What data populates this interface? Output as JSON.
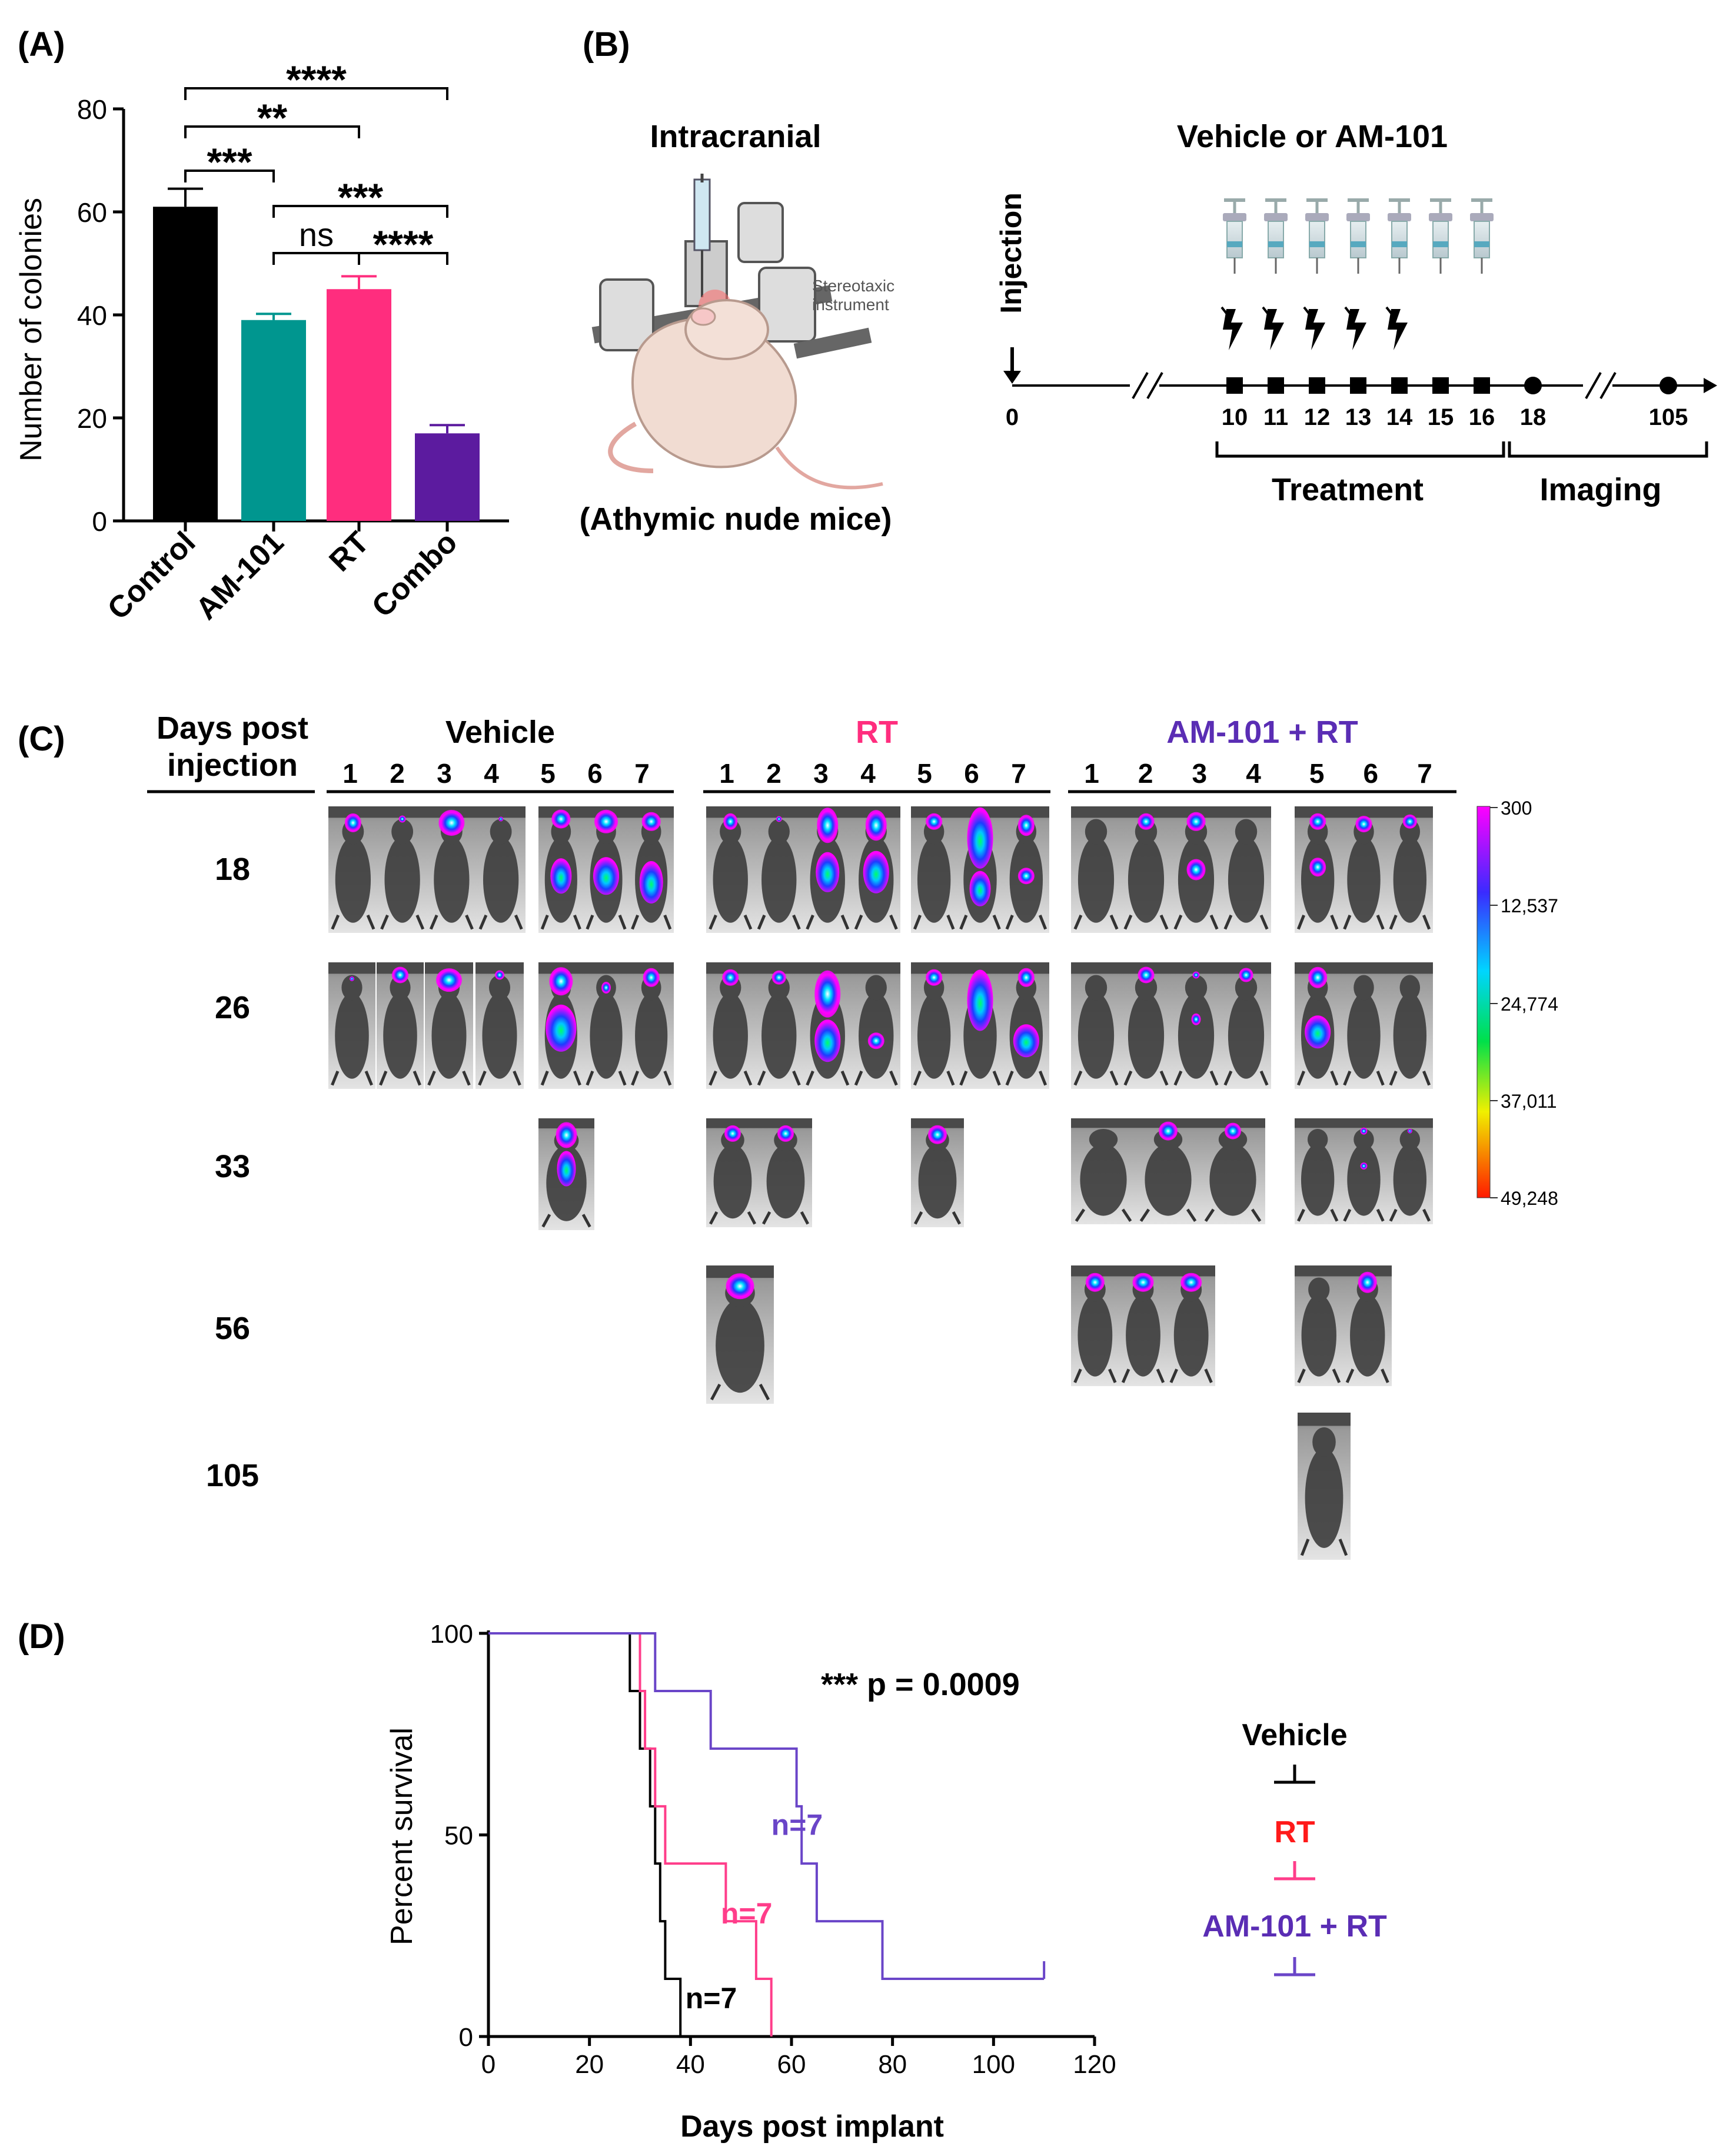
{
  "panel_labels": {
    "a": "(A)",
    "b": "(B)",
    "c": "(C)",
    "d": "(D)"
  },
  "colors": {
    "control": "#000000",
    "am101": "#00968f",
    "rt": "#ff2d7e",
    "combo": "#5c1b9f",
    "rt_text": "#ff2d7e",
    "combo_text": "#5a2db4",
    "km_vehicle": "#000000",
    "km_rt": "#ff3d8a",
    "km_combo": "#6a45c8",
    "legend_rt": "#ff1a1a"
  },
  "chart_data": [
    {
      "id": "A",
      "type": "bar",
      "ylabel": "Number of colonies",
      "xlabel": "",
      "ylim": [
        0,
        80
      ],
      "yticks": [
        0,
        20,
        40,
        60,
        80
      ],
      "categories": [
        "Control",
        "AM-101",
        "RT",
        "Combo"
      ],
      "values": [
        61,
        39,
        45,
        17
      ],
      "errors": [
        3.5,
        1.2,
        2.5,
        1.6
      ],
      "significance": [
        {
          "from": 0,
          "to": 3,
          "label": "****"
        },
        {
          "from": 0,
          "to": 2,
          "label": "**"
        },
        {
          "from": 0,
          "to": 1,
          "label": "***"
        },
        {
          "from": 1,
          "to": 3,
          "label": "***"
        },
        {
          "from": 1,
          "to": 2,
          "label": "ns"
        },
        {
          "from": 2,
          "to": 3,
          "label": "****"
        }
      ]
    },
    {
      "id": "D",
      "type": "line",
      "subtype": "kaplan-meier",
      "xlabel": "Days post implant",
      "ylabel": "Percent survival",
      "xlim": [
        0,
        120
      ],
      "ylim": [
        0,
        100
      ],
      "xticks": [
        0,
        20,
        40,
        60,
        80,
        100,
        120
      ],
      "yticks": [
        0,
        50,
        100
      ],
      "annotation": "*** p = 0.0009",
      "series": [
        {
          "name": "Vehicle",
          "n_label": "n=7",
          "steps": [
            [
              0,
              100
            ],
            [
              28,
              100
            ],
            [
              28,
              85.7
            ],
            [
              30,
              85.7
            ],
            [
              30,
              71.4
            ],
            [
              32,
              71.4
            ],
            [
              32,
              57.1
            ],
            [
              33,
              57.1
            ],
            [
              33,
              42.9
            ],
            [
              34,
              42.9
            ],
            [
              34,
              28.6
            ],
            [
              35,
              28.6
            ],
            [
              35,
              14.3
            ],
            [
              38,
              14.3
            ],
            [
              38,
              0
            ]
          ]
        },
        {
          "name": "RT",
          "n_label": "n=7",
          "steps": [
            [
              0,
              100
            ],
            [
              30,
              100
            ],
            [
              30,
              85.7
            ],
            [
              31,
              85.7
            ],
            [
              31,
              71.4
            ],
            [
              33,
              71.4
            ],
            [
              33,
              57.1
            ],
            [
              35,
              57.1
            ],
            [
              35,
              42.9
            ],
            [
              47,
              42.9
            ],
            [
              47,
              28.6
            ],
            [
              53,
              28.6
            ],
            [
              53,
              14.3
            ],
            [
              56,
              14.3
            ],
            [
              56,
              0
            ]
          ]
        },
        {
          "name": "AM-101 + RT",
          "n_label": "n=7",
          "steps": [
            [
              0,
              100
            ],
            [
              33,
              100
            ],
            [
              33,
              85.7
            ],
            [
              44,
              85.7
            ],
            [
              44,
              71.4
            ],
            [
              61,
              71.4
            ],
            [
              61,
              57.1
            ],
            [
              62,
              57.1
            ],
            [
              62,
              42.9
            ],
            [
              65,
              42.9
            ],
            [
              65,
              28.6
            ],
            [
              78,
              28.6
            ],
            [
              78,
              14.3
            ],
            [
              110,
              14.3
            ]
          ]
        }
      ]
    }
  ],
  "panel_b": {
    "intracranial_title": "Intracranial",
    "stereotaxic_label": "Stereotaxic\ninstrument",
    "mice_label": "(Athymic nude mice)",
    "vehicle_title": "Vehicle or AM-101",
    "injection_label": "Injection",
    "timeline_days": [
      "0",
      "10",
      "11",
      "12",
      "13",
      "14",
      "15",
      "16",
      "18",
      "105"
    ],
    "treatment_label": "Treatment",
    "imaging_label": "Imaging"
  },
  "panel_c": {
    "header_line1": "Days post",
    "header_line2": "injection",
    "groups": [
      {
        "name": "Vehicle"
      },
      {
        "name": "RT"
      },
      {
        "name": "AM-101 + RT"
      }
    ],
    "mouse_numbers": [
      "1",
      "2",
      "3",
      "4",
      "5",
      "6",
      "7"
    ],
    "days": [
      "18",
      "26",
      "33",
      "56",
      "105"
    ],
    "colorbar_ticks": [
      "300",
      "12,537",
      "24,774",
      "37,011",
      "49,248"
    ]
  },
  "panel_d_legend": {
    "vehicle": "Vehicle",
    "rt": "RT",
    "combo": "AM-101 + RT"
  }
}
